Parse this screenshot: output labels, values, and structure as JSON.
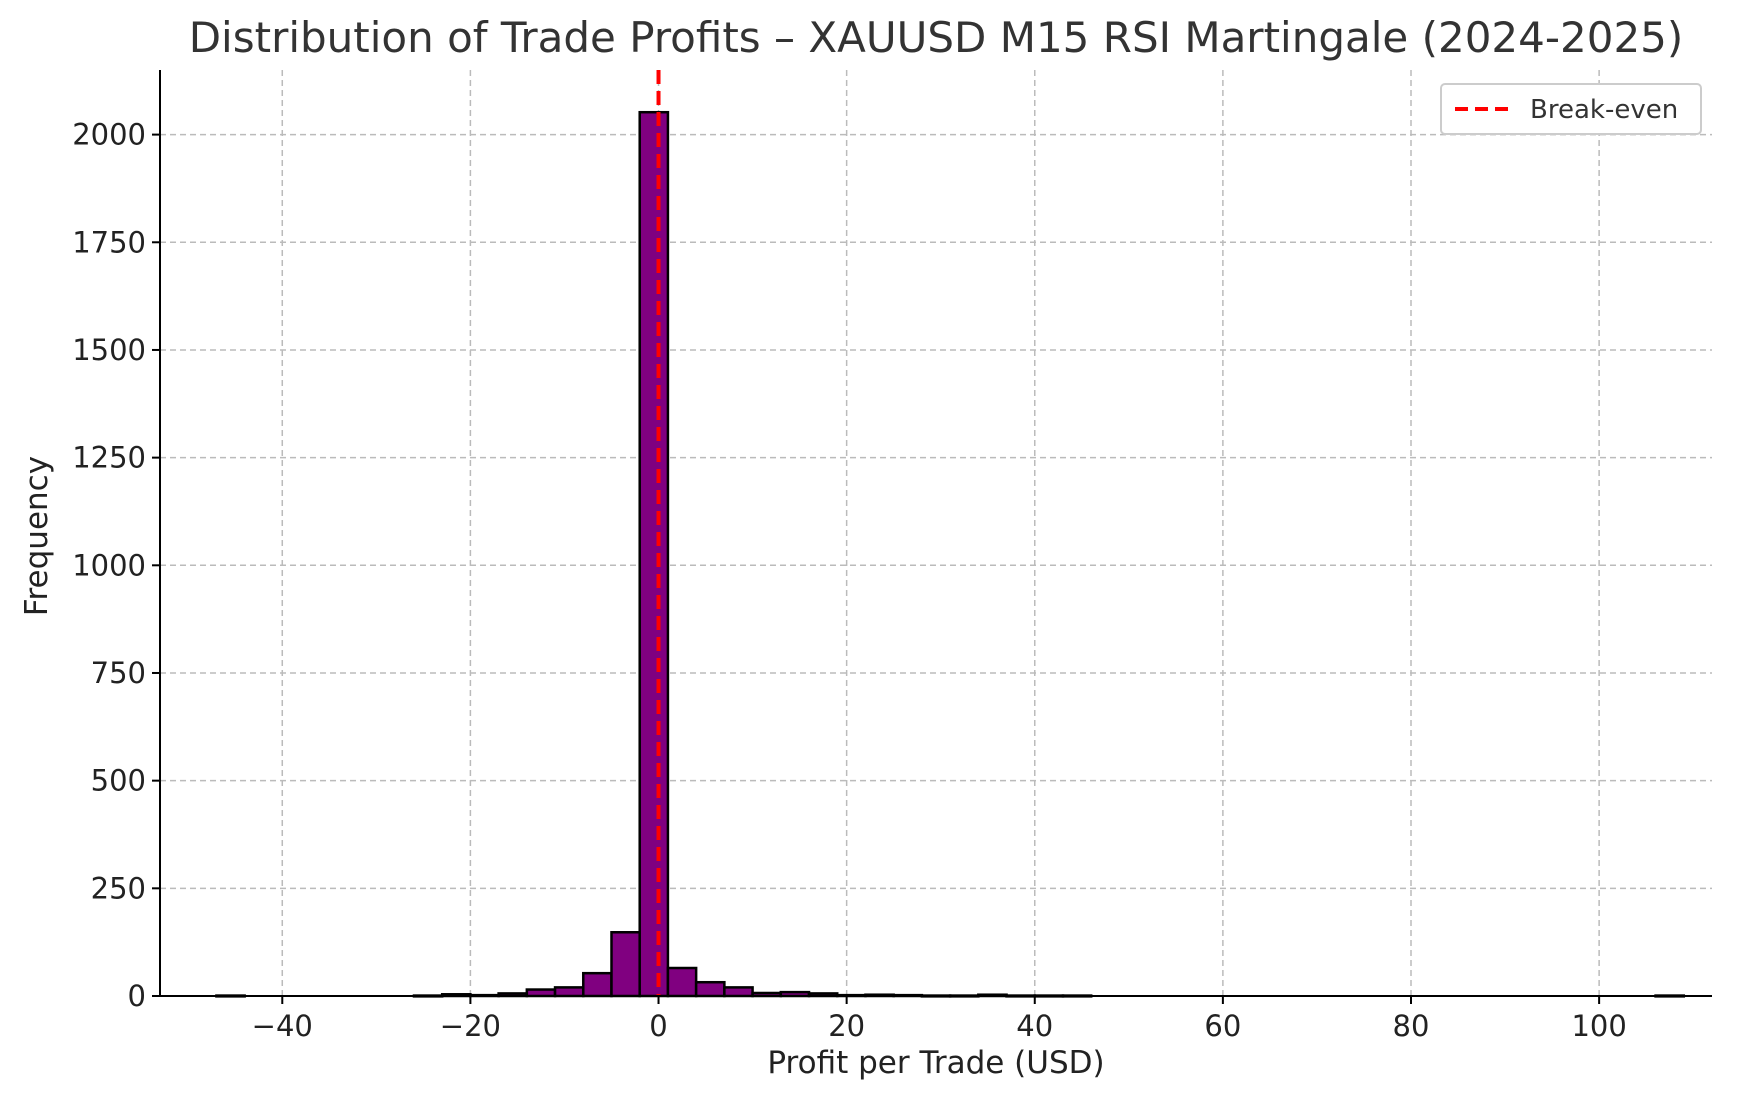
{
  "colors": {
    "bar_fill": "#800080",
    "bar_edge": "#000000",
    "breakeven_line": "#ff0000",
    "grid": "#bbbbbb",
    "axis": "#000000",
    "legend_border": "#cccccc"
  },
  "chart_data": {
    "type": "bar",
    "title": "Distribution of Trade Profits – XAUUSD M15 RSI Martingale (2024-2025)",
    "xlabel": "Profit per Trade (USD)",
    "ylabel": "Frequency",
    "xlim": [
      -53,
      112
    ],
    "ylim": [
      0,
      2150
    ],
    "xticks": [
      -40,
      -20,
      0,
      20,
      40,
      60,
      80,
      100
    ],
    "xtick_labels": [
      "−40",
      "−20",
      "0",
      "20",
      "40",
      "60",
      "80",
      "100"
    ],
    "yticks": [
      0,
      250,
      500,
      750,
      1000,
      1250,
      1500,
      1750,
      2000
    ],
    "ytick_labels": [
      "0",
      "250",
      "500",
      "750",
      "1000",
      "1250",
      "1500",
      "1750",
      "2000"
    ],
    "grid": true,
    "legend_position": "top-right",
    "series": [
      {
        "bin_width": 3,
        "bin_starts": [
          -47,
          -44,
          -41,
          -38,
          -35,
          -32,
          -29,
          -26,
          -23,
          -20,
          -17,
          -14,
          -11,
          -8,
          -5,
          -2,
          1,
          4,
          7,
          10,
          13,
          16,
          19,
          22,
          25,
          28,
          31,
          34,
          37,
          40,
          43,
          46,
          49,
          52,
          55,
          58,
          61,
          64,
          67,
          70,
          73,
          76,
          79,
          82,
          85,
          88,
          91,
          94,
          97,
          100,
          103,
          106
        ],
        "values": [
          1,
          0,
          0,
          0,
          0,
          0,
          0,
          1,
          4,
          2,
          6,
          15,
          20,
          53,
          148,
          2052,
          65,
          32,
          20,
          7,
          9,
          6,
          2,
          3,
          2,
          1,
          1,
          3,
          1,
          1,
          1,
          0,
          0,
          0,
          0,
          0,
          0,
          0,
          0,
          0,
          0,
          0,
          0,
          0,
          0,
          0,
          0,
          0,
          0,
          0,
          0,
          1
        ]
      }
    ],
    "vline": {
      "x": 0,
      "label": "Break-even"
    }
  }
}
